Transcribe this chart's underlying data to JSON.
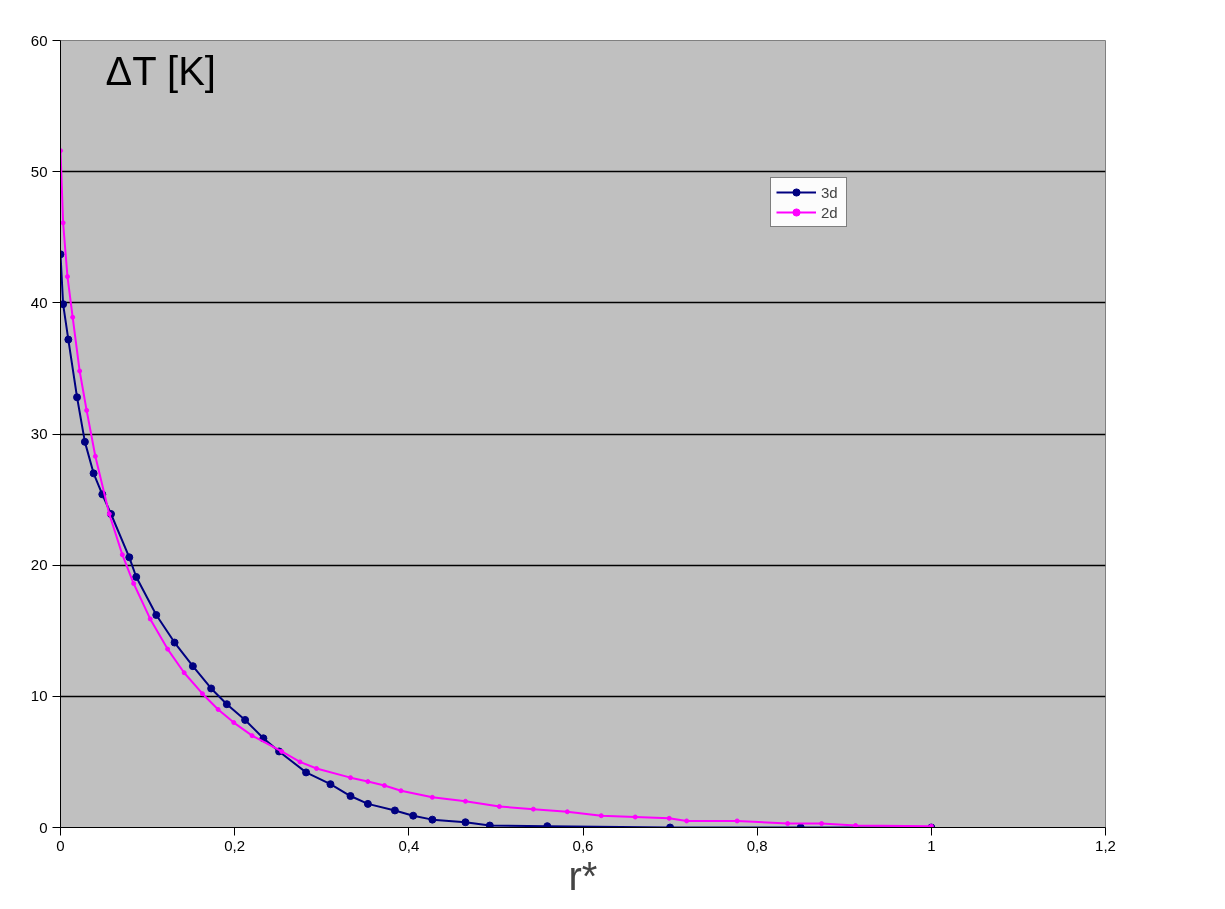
{
  "chart_data": {
    "type": "line",
    "ylabel": "ΔT [K]",
    "xlabel": "r*",
    "xlim": [
      0,
      1.2
    ],
    "ylim": [
      0,
      60
    ],
    "xticks": [
      0,
      {
        "value": 0.2,
        "label": "0,2"
      },
      {
        "value": 0.4,
        "label": "0,4"
      },
      {
        "value": 0.6,
        "label": "0,6"
      },
      {
        "value": 0.8,
        "label": "0,8"
      },
      1,
      {
        "value": 1.2,
        "label": "1,2"
      }
    ],
    "yticks": [
      0,
      10,
      20,
      30,
      40,
      50,
      60
    ],
    "grid": "y",
    "legend": "top right",
    "marker": "circle",
    "series": [
      {
        "name": "3d",
        "color": "#000080",
        "x": [
          0,
          0.003,
          0.009,
          0.019,
          0.028,
          0.038,
          0.048,
          0.058,
          0.079,
          0.087,
          0.11,
          0.131,
          0.152,
          0.173,
          0.191,
          0.212,
          0.233,
          0.251,
          0.282,
          0.31,
          0.333,
          0.353,
          0.384,
          0.405,
          0.427,
          0.465,
          0.493,
          0.559,
          0.7,
          0.85,
          1.0
        ],
        "values": [
          43.7,
          39.9,
          37.2,
          32.8,
          29.4,
          27.0,
          25.4,
          23.9,
          20.6,
          19.1,
          16.2,
          14.1,
          12.3,
          10.6,
          9.4,
          8.2,
          6.8,
          5.8,
          4.2,
          3.3,
          2.4,
          1.8,
          1.3,
          0.9,
          0.6,
          0.4,
          0.15,
          0.1,
          0,
          0,
          0
        ]
      },
      {
        "name": "2d",
        "color": "#ff00ff",
        "x": [
          0,
          0.003,
          0.008,
          0.014,
          0.022,
          0.03,
          0.04,
          0.056,
          0.071,
          0.084,
          0.103,
          0.123,
          0.142,
          0.163,
          0.181,
          0.199,
          0.22,
          0.254,
          0.275,
          0.294,
          0.333,
          0.353,
          0.372,
          0.391,
          0.427,
          0.465,
          0.504,
          0.543,
          0.582,
          0.621,
          0.66,
          0.699,
          0.719,
          0.777,
          0.835,
          0.874,
          0.913,
          1.0
        ],
        "values": [
          51.6,
          46.1,
          42.0,
          38.9,
          34.8,
          31.8,
          28.3,
          23.9,
          20.8,
          18.6,
          15.9,
          13.6,
          11.8,
          10.2,
          9.0,
          8.0,
          7.0,
          5.8,
          5.0,
          4.5,
          3.8,
          3.5,
          3.2,
          2.8,
          2.3,
          2.0,
          1.6,
          1.4,
          1.2,
          0.9,
          0.8,
          0.7,
          0.5,
          0.5,
          0.3,
          0.3,
          0.15,
          0.1
        ]
      }
    ]
  }
}
